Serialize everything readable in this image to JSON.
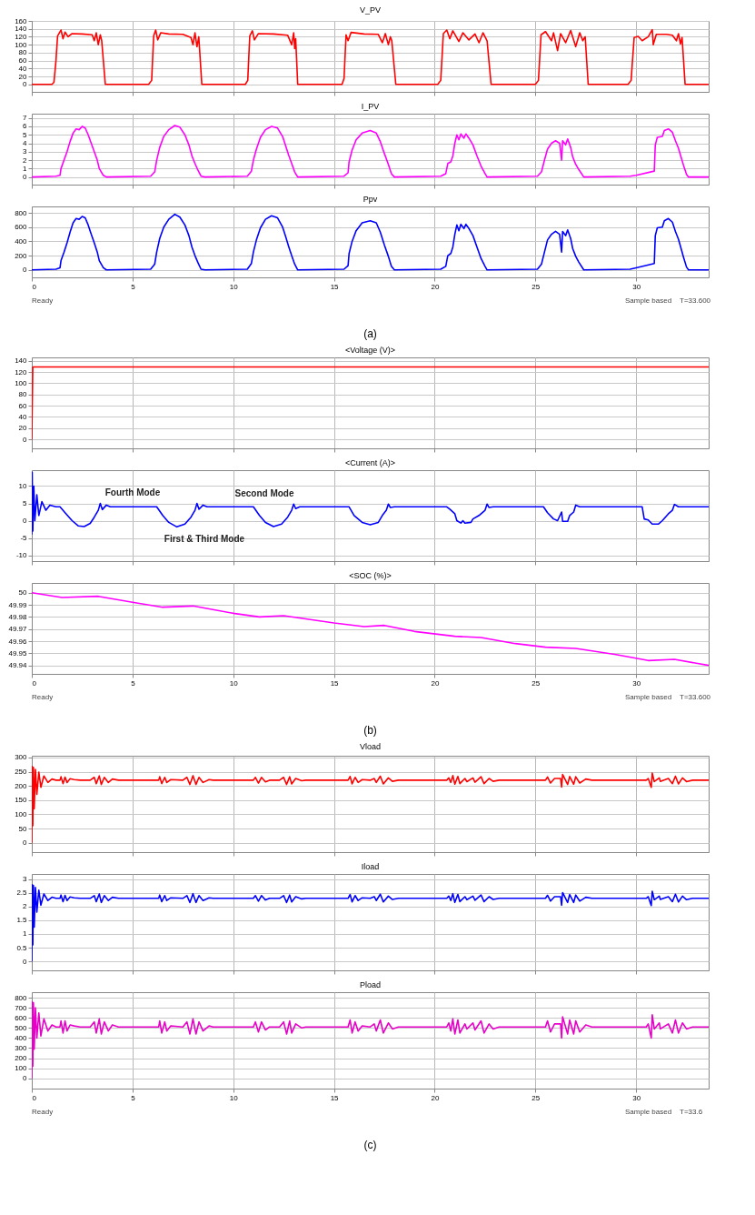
{
  "chart_data": [
    {
      "type": "line",
      "title": "V_PV",
      "grid": true,
      "tick_labels": "y",
      "xlim": [
        0,
        33.6
      ],
      "xticks": [
        0,
        5,
        10,
        15,
        20,
        25,
        30
      ],
      "ylim": [
        -19,
        160
      ],
      "yticks": [
        0,
        20,
        40,
        60,
        80,
        100,
        120,
        140,
        160
      ],
      "x": [
        0,
        1.0,
        1.1,
        1.2,
        1.28,
        1.35,
        1.45,
        1.55,
        1.65,
        1.8,
        2.0,
        2.5,
        3.0,
        3.1,
        3.2,
        3.3,
        3.4,
        3.47,
        3.65,
        5.8,
        5.95,
        6.05,
        6.15,
        6.25,
        6.4,
        6.8,
        7.5,
        7.9,
        8.0,
        8.1,
        8.2,
        8.29,
        8.44,
        10.6,
        10.72,
        10.82,
        10.95,
        11.05,
        11.25,
        12,
        12.7,
        12.9,
        13.0,
        13.05,
        13.1,
        13.2,
        15.4,
        15.5,
        15.6,
        15.7,
        15.85,
        16.5,
        17.2,
        17.4,
        17.55,
        17.7,
        17.8,
        17.87,
        18.07,
        20.15,
        20.3,
        20.43,
        20.6,
        20.75,
        20.9,
        21.2,
        21.4,
        21.7,
        22.0,
        22.2,
        22.4,
        22.6,
        22.8,
        25.0,
        25.15,
        25.28,
        25.5,
        25.8,
        25.9,
        26.1,
        26.25,
        26.5,
        26.75,
        27.0,
        27.2,
        27.35,
        27.47,
        27.62,
        29.6,
        29.75,
        29.9,
        30.1,
        30.3,
        30.6,
        30.8,
        30.85,
        31.0,
        31.5,
        31.8,
        32.0,
        32.1,
        32.2,
        32.28,
        32.43,
        33.6
      ],
      "series": [
        {
          "color": "#ff0000",
          "values": [
            0,
            0,
            5,
            60,
            122,
            128,
            137,
            115,
            132,
            120,
            128,
            127,
            125,
            110,
            130,
            100,
            125,
            110,
            0,
            0,
            10,
            122,
            137,
            112,
            130,
            127,
            126,
            118,
            100,
            130,
            95,
            120,
            0,
            0,
            10,
            122,
            135,
            112,
            128,
            127,
            124,
            100,
            130,
            90,
            115,
            0,
            0,
            15,
            125,
            110,
            131,
            127,
            126,
            105,
            128,
            100,
            120,
            110,
            0,
            0,
            10,
            128,
            137,
            115,
            135,
            108,
            130,
            112,
            127,
            105,
            130,
            110,
            0,
            0,
            10,
            125,
            133,
            110,
            130,
            85,
            128,
            105,
            136,
            95,
            130,
            110,
            120,
            0,
            0,
            10,
            118,
            121,
            110,
            120,
            138,
            100,
            126,
            126,
            124,
            110,
            128,
            102,
            118,
            0,
            0
          ]
        }
      ]
    },
    {
      "type": "line",
      "title": "I_PV",
      "grid": true,
      "tick_labels": "y",
      "xlim": [
        0,
        33.6
      ],
      "xticks": [
        0,
        5,
        10,
        15,
        20,
        25,
        30
      ],
      "ylim": [
        -0.9,
        7.5
      ],
      "yticks": [
        0,
        1,
        2,
        3,
        4,
        5,
        6,
        7
      ],
      "x": [
        0,
        1.2,
        1.4,
        1.45,
        1.6,
        1.75,
        1.9,
        2.05,
        2.2,
        2.35,
        2.5,
        2.65,
        2.8,
        2.95,
        3.1,
        3.25,
        3.35,
        3.55,
        3.7,
        5.9,
        6.1,
        6.2,
        6.35,
        6.55,
        6.8,
        7.1,
        7.35,
        7.6,
        7.8,
        7.95,
        8.1,
        8.25,
        8.4,
        8.6,
        10.7,
        10.9,
        11.0,
        11.15,
        11.35,
        11.6,
        11.9,
        12.2,
        12.45,
        12.6,
        12.75,
        12.9,
        13.05,
        13.2,
        15.5,
        15.7,
        15.75,
        15.9,
        16.1,
        16.4,
        16.8,
        17.1,
        17.3,
        17.5,
        17.7,
        17.85,
        18.0,
        20.3,
        20.55,
        20.65,
        20.8,
        20.9,
        21.0,
        21.1,
        21.2,
        21.3,
        21.45,
        21.55,
        21.7,
        21.9,
        22.1,
        22.3,
        22.5,
        22.6,
        25.1,
        25.3,
        25.45,
        25.6,
        25.8,
        26.0,
        26.2,
        26.3,
        26.35,
        26.5,
        26.6,
        26.75,
        26.85,
        27.0,
        27.15,
        27.4,
        29.7,
        30.0,
        30.9,
        30.95,
        31.05,
        31.3,
        31.4,
        31.6,
        31.8,
        31.95,
        32.1,
        32.25,
        32.35,
        32.5,
        32.6,
        33.6
      ],
      "series": [
        {
          "color": "#ff00ff",
          "values": [
            0,
            0.1,
            0.2,
            1.0,
            2.0,
            3.0,
            4.2,
            5.2,
            5.7,
            5.6,
            6.0,
            5.8,
            5.0,
            4.0,
            3.0,
            2.0,
            1.0,
            0.2,
            0,
            0.1,
            0.6,
            2.0,
            3.5,
            4.8,
            5.6,
            6.1,
            5.9,
            5.0,
            3.8,
            2.5,
            1.6,
            0.8,
            0.1,
            0,
            0.1,
            0.7,
            2.0,
            3.3,
            4.7,
            5.6,
            6.0,
            5.8,
            4.8,
            3.7,
            2.6,
            1.6,
            0.6,
            0,
            0.1,
            0.5,
            1.8,
            3.2,
            4.4,
            5.2,
            5.5,
            5.2,
            4.2,
            2.8,
            1.5,
            0.4,
            0,
            0.1,
            0.4,
            1.6,
            1.8,
            2.5,
            4.0,
            5.0,
            4.4,
            5.1,
            4.6,
            5.1,
            4.6,
            3.8,
            2.5,
            1.3,
            0.4,
            0,
            0.1,
            0.6,
            2.0,
            3.3,
            4.0,
            4.3,
            4.0,
            2.0,
            4.3,
            3.8,
            4.5,
            3.5,
            2.4,
            1.5,
            0.9,
            0,
            0.1,
            0.2,
            0.7,
            3.8,
            4.7,
            4.8,
            5.5,
            5.7,
            5.3,
            4.3,
            3.4,
            2.2,
            1.4,
            0.3,
            0,
            0
          ]
        }
      ]
    },
    {
      "type": "line",
      "title": "Ppv",
      "grid": true,
      "xlim": [
        0,
        33.6
      ],
      "xticks": [
        0,
        5,
        10,
        15,
        20,
        25,
        30
      ],
      "ylim": [
        -105,
        890
      ],
      "yticks": [
        0,
        200,
        400,
        600,
        800
      ],
      "x": [
        0,
        1.2,
        1.4,
        1.45,
        1.6,
        1.75,
        1.9,
        2.05,
        2.2,
        2.35,
        2.5,
        2.65,
        2.8,
        2.95,
        3.1,
        3.25,
        3.35,
        3.55,
        3.7,
        5.9,
        6.1,
        6.2,
        6.35,
        6.55,
        6.8,
        7.1,
        7.35,
        7.6,
        7.8,
        7.95,
        8.1,
        8.25,
        8.4,
        8.6,
        10.7,
        10.9,
        11.0,
        11.15,
        11.35,
        11.6,
        11.9,
        12.2,
        12.45,
        12.6,
        12.75,
        12.9,
        13.05,
        13.2,
        15.5,
        15.7,
        15.75,
        15.9,
        16.1,
        16.4,
        16.8,
        17.1,
        17.3,
        17.5,
        17.7,
        17.85,
        18.0,
        20.3,
        20.55,
        20.65,
        20.8,
        20.9,
        21.0,
        21.1,
        21.2,
        21.3,
        21.45,
        21.55,
        21.7,
        21.9,
        22.1,
        22.3,
        22.5,
        22.6,
        25.1,
        25.3,
        25.45,
        25.6,
        25.8,
        26.0,
        26.2,
        26.3,
        26.35,
        26.5,
        26.6,
        26.75,
        26.85,
        27.0,
        27.15,
        27.4,
        29.7,
        30.0,
        30.9,
        30.95,
        31.05,
        31.3,
        31.4,
        31.6,
        31.8,
        31.95,
        32.1,
        32.25,
        32.35,
        32.5,
        32.6,
        33.6
      ],
      "series": [
        {
          "color": "#0000ff",
          "values": [
            0,
            10,
            30,
            130,
            250,
            380,
            530,
            660,
            720,
            710,
            750,
            730,
            630,
            500,
            380,
            250,
            130,
            30,
            0,
            10,
            80,
            250,
            440,
            600,
            710,
            780,
            740,
            630,
            480,
            320,
            200,
            100,
            10,
            0,
            10,
            90,
            250,
            420,
            590,
            710,
            760,
            730,
            600,
            470,
            330,
            200,
            80,
            0,
            10,
            60,
            230,
            400,
            550,
            660,
            690,
            660,
            530,
            350,
            190,
            50,
            0,
            10,
            50,
            200,
            230,
            320,
            500,
            630,
            550,
            640,
            580,
            640,
            580,
            480,
            320,
            160,
            50,
            0,
            10,
            80,
            250,
            420,
            500,
            540,
            500,
            250,
            540,
            480,
            560,
            440,
            300,
            190,
            110,
            0,
            10,
            30,
            90,
            480,
            590,
            600,
            690,
            720,
            670,
            540,
            430,
            280,
            180,
            40,
            0,
            0
          ]
        }
      ],
      "annotations": [
        "Ready",
        "Sample based",
        "T=33.600",
        "(a)"
      ]
    },
    {
      "type": "line",
      "title": "<Voltage (V)>",
      "grid": true,
      "tick_labels": "y",
      "xlim": [
        0,
        33.6
      ],
      "xticks": [
        0,
        5,
        10,
        15,
        20,
        25,
        30
      ],
      "ylim": [
        -16,
        146
      ],
      "yticks": [
        0,
        20,
        40,
        60,
        80,
        100,
        120,
        140
      ],
      "x": [
        0,
        0.05,
        33.6
      ],
      "series": [
        {
          "color": "#ff0000",
          "values": [
            0,
            129,
            129
          ]
        }
      ]
    },
    {
      "type": "line",
      "title": "<Current (A)>",
      "grid": true,
      "tick_labels": "y",
      "xlim": [
        0,
        33.6
      ],
      "xticks": [
        0,
        5,
        10,
        15,
        20,
        25,
        30
      ],
      "ylim": [
        -11.7,
        14.6
      ],
      "yticks": [
        -10,
        -5,
        0,
        5,
        10
      ],
      "x": [
        0,
        0.02,
        0.05,
        0.1,
        0.15,
        0.25,
        0.35,
        0.5,
        0.7,
        0.9,
        1.2,
        1.4,
        1.7,
        2.0,
        2.3,
        2.6,
        2.9,
        3.1,
        3.3,
        3.4,
        3.5,
        3.7,
        3.9,
        6.2,
        6.5,
        6.8,
        7.2,
        7.6,
        7.9,
        8.1,
        8.2,
        8.3,
        8.5,
        8.7,
        11.0,
        11.3,
        11.6,
        12.0,
        12.4,
        12.7,
        12.9,
        13.0,
        13.1,
        13.3,
        15.75,
        16.0,
        16.4,
        16.8,
        17.2,
        17.4,
        17.6,
        17.7,
        17.8,
        18.0,
        20.6,
        20.75,
        21.0,
        21.1,
        21.3,
        21.4,
        21.5,
        21.8,
        21.9,
        22.2,
        22.5,
        22.6,
        22.7,
        22.9,
        25.4,
        25.6,
        25.9,
        26.1,
        26.3,
        26.35,
        26.6,
        26.7,
        26.9,
        27.0,
        27.2,
        30.3,
        30.4,
        30.6,
        30.8,
        31.1,
        31.3,
        31.6,
        31.8,
        31.9,
        32.1,
        33.6
      ],
      "series": [
        {
          "color": "#0000ff",
          "values": [
            -4,
            14,
            -3,
            10,
            0,
            7.5,
            1.5,
            5.5,
            3,
            4.5,
            4,
            4,
            2,
            0,
            -1.5,
            -1.7,
            -0.8,
            1,
            3,
            5,
            3.2,
            4.5,
            4,
            4,
            1.5,
            -0.5,
            -1.8,
            -1,
            1,
            3,
            5,
            3.3,
            4.5,
            4,
            4,
            1.5,
            -0.5,
            -1.7,
            -1,
            1,
            3,
            4.8,
            3.5,
            4,
            4,
            1.5,
            -0.5,
            -1.2,
            -0.5,
            1.5,
            3,
            4.8,
            3.8,
            4,
            4,
            3.3,
            2,
            0,
            -0.7,
            0,
            -0.7,
            -0.5,
            0.5,
            1.5,
            3,
            4.8,
            3.8,
            4,
            4,
            2.3,
            0.5,
            0,
            2.5,
            -0.2,
            -0.2,
            1.5,
            2.5,
            4.5,
            4,
            4,
            0.5,
            0.2,
            -1,
            -1,
            0,
            2,
            3,
            4.7,
            4,
            4
          ]
        }
      ],
      "annotations": [
        "Fourth Mode",
        "Second Mode",
        "First & Third Mode"
      ]
    },
    {
      "type": "line",
      "title": "<SOC (%)>",
      "grid": true,
      "xlim": [
        0,
        33.6
      ],
      "xticks": [
        0,
        5,
        10,
        15,
        20,
        25,
        30
      ],
      "ylim": [
        49.933,
        50.008
      ],
      "yticks": [
        49.94,
        49.95,
        49.96,
        49.97,
        49.98,
        49.99,
        50
      ],
      "x": [
        0,
        1.5,
        3.3,
        5,
        6.5,
        8,
        10,
        11.3,
        12.5,
        15,
        16.5,
        17.5,
        19,
        21,
        22.3,
        24,
        25.5,
        27,
        29,
        30.6,
        31.9,
        33.6
      ],
      "series": [
        {
          "color": "#ff00ff",
          "values": [
            50,
            49.996,
            49.997,
            49.992,
            49.988,
            49.989,
            49.983,
            49.98,
            49.981,
            49.975,
            49.972,
            49.973,
            49.968,
            49.964,
            49.963,
            49.958,
            49.955,
            49.954,
            49.949,
            49.944,
            49.945,
            49.94
          ]
        }
      ],
      "annotations": [
        "Ready",
        "Sample based",
        "T=33.600",
        "(b)"
      ]
    },
    {
      "type": "line",
      "title": "Vload",
      "grid": true,
      "tick_labels": "y",
      "xlim": [
        0,
        33.6
      ],
      "xticks": [
        0,
        5,
        10,
        15,
        20,
        25,
        30
      ],
      "ylim": [
        -33,
        306
      ],
      "yticks": [
        0,
        50,
        100,
        150,
        200,
        250,
        300
      ],
      "x": [
        0,
        0.02,
        0.05,
        0.08,
        0.12,
        0.18,
        0.25,
        0.35,
        0.45,
        0.6,
        0.8,
        1.0,
        1.2,
        1.4,
        1.45,
        1.55,
        1.65,
        1.75,
        1.9,
        2.1,
        2.4,
        2.9,
        3.1,
        3.2,
        3.35,
        3.45,
        3.6,
        3.8,
        4.0,
        4.3,
        6.3,
        6.35,
        6.45,
        6.6,
        6.7,
        6.9,
        7.5,
        7.7,
        7.85,
        8.0,
        8.15,
        8.3,
        8.5,
        8.8,
        9.0,
        11.0,
        11.1,
        11.25,
        11.4,
        11.6,
        11.8,
        12.3,
        12.5,
        12.65,
        12.8,
        12.9,
        13.1,
        13.4,
        13.6,
        15.7,
        15.8,
        15.9,
        16.05,
        16.2,
        16.4,
        16.8,
        17.0,
        17.1,
        17.3,
        17.45,
        17.7,
        17.9,
        18.2,
        20.6,
        20.7,
        20.8,
        20.9,
        21.0,
        21.15,
        21.25,
        21.5,
        21.6,
        21.9,
        22.0,
        22.3,
        22.45,
        22.7,
        22.9,
        23.2,
        25.5,
        25.6,
        25.75,
        25.95,
        26.25,
        26.3,
        26.35,
        26.6,
        26.7,
        26.9,
        27.0,
        27.2,
        27.5,
        27.8,
        30.5,
        30.6,
        30.75,
        30.8,
        30.9,
        31.15,
        31.2,
        31.6,
        31.8,
        31.95,
        32.1,
        32.3,
        32.5,
        32.8,
        33.6
      ],
      "series": [
        {
          "color": "#ff0000",
          "values": [
            0,
            268,
            60,
            265,
            120,
            258,
            170,
            248,
            195,
            235,
            212,
            224,
            220,
            220,
            232,
            208,
            231,
            212,
            225,
            222,
            220,
            220,
            230,
            208,
            235,
            205,
            230,
            212,
            224,
            220,
            220,
            232,
            208,
            230,
            212,
            222,
            220,
            230,
            205,
            236,
            205,
            230,
            212,
            222,
            220,
            220,
            230,
            210,
            230,
            214,
            220,
            220,
            230,
            205,
            232,
            207,
            226,
            218,
            220,
            220,
            233,
            207,
            230,
            212,
            222,
            220,
            226,
            212,
            234,
            207,
            228,
            216,
            220,
            220,
            228,
            212,
            236,
            206,
            233,
            208,
            226,
            215,
            228,
            213,
            232,
            208,
            226,
            216,
            220,
            220,
            231,
            210,
            226,
            226,
            196,
            240,
            205,
            233,
            206,
            232,
            210,
            224,
            220,
            220,
            226,
            195,
            245,
            215,
            228,
            216,
            226,
            208,
            234,
            207,
            228,
            215,
            220,
            220
          ]
        }
      ]
    },
    {
      "type": "line",
      "title": "Iload",
      "grid": true,
      "tick_labels": "y",
      "xlim": [
        0,
        33.6
      ],
      "xticks": [
        0,
        5,
        10,
        15,
        20,
        25,
        30
      ],
      "ylim": [
        -0.33,
        3.19
      ],
      "yticks": [
        0,
        0.5,
        1,
        1.5,
        2,
        2.5,
        3
      ],
      "x": [
        0,
        0.02,
        0.05,
        0.08,
        0.12,
        0.18,
        0.25,
        0.35,
        0.45,
        0.6,
        0.8,
        1.0,
        1.2,
        1.4,
        1.45,
        1.55,
        1.65,
        1.75,
        1.9,
        2.1,
        2.4,
        2.9,
        3.1,
        3.2,
        3.35,
        3.45,
        3.6,
        3.8,
        4.0,
        4.3,
        6.3,
        6.35,
        6.45,
        6.6,
        6.7,
        6.9,
        7.5,
        7.7,
        7.85,
        8.0,
        8.15,
        8.3,
        8.5,
        8.8,
        9.0,
        11.0,
        11.1,
        11.25,
        11.4,
        11.6,
        11.8,
        12.3,
        12.5,
        12.65,
        12.8,
        12.9,
        13.1,
        13.4,
        13.6,
        15.7,
        15.8,
        15.9,
        16.05,
        16.2,
        16.4,
        16.8,
        17.0,
        17.1,
        17.3,
        17.45,
        17.7,
        17.9,
        18.2,
        20.6,
        20.7,
        20.8,
        20.9,
        21.0,
        21.15,
        21.25,
        21.5,
        21.6,
        21.9,
        22.0,
        22.3,
        22.45,
        22.7,
        22.9,
        23.2,
        25.5,
        25.6,
        25.75,
        25.95,
        26.25,
        26.3,
        26.35,
        26.6,
        26.7,
        26.9,
        27.0,
        27.2,
        27.5,
        27.8,
        30.5,
        30.6,
        30.75,
        30.8,
        30.9,
        31.15,
        31.2,
        31.6,
        31.8,
        31.95,
        32.1,
        32.3,
        32.5,
        32.8,
        33.6
      ],
      "series": [
        {
          "color": "#0000ff",
          "values": [
            0,
            2.8,
            0.6,
            2.77,
            1.25,
            2.7,
            1.8,
            2.6,
            2.05,
            2.46,
            2.22,
            2.34,
            2.3,
            2.3,
            2.42,
            2.18,
            2.41,
            2.22,
            2.35,
            2.32,
            2.3,
            2.3,
            2.4,
            2.18,
            2.46,
            2.15,
            2.4,
            2.22,
            2.34,
            2.3,
            2.3,
            2.42,
            2.18,
            2.4,
            2.22,
            2.32,
            2.3,
            2.4,
            2.15,
            2.47,
            2.15,
            2.4,
            2.22,
            2.32,
            2.3,
            2.3,
            2.4,
            2.2,
            2.4,
            2.24,
            2.3,
            2.3,
            2.4,
            2.15,
            2.42,
            2.17,
            2.36,
            2.28,
            2.3,
            2.3,
            2.44,
            2.17,
            2.4,
            2.22,
            2.32,
            2.3,
            2.36,
            2.22,
            2.45,
            2.17,
            2.38,
            2.26,
            2.3,
            2.3,
            2.38,
            2.22,
            2.47,
            2.15,
            2.44,
            2.18,
            2.36,
            2.25,
            2.38,
            2.23,
            2.42,
            2.18,
            2.36,
            2.26,
            2.3,
            2.3,
            2.41,
            2.2,
            2.36,
            2.36,
            2.05,
            2.51,
            2.15,
            2.44,
            2.15,
            2.42,
            2.2,
            2.34,
            2.3,
            2.3,
            2.36,
            2.04,
            2.56,
            2.25,
            2.38,
            2.26,
            2.36,
            2.18,
            2.45,
            2.17,
            2.38,
            2.25,
            2.3,
            2.3
          ]
        }
      ]
    },
    {
      "type": "line",
      "title": "Pload",
      "grid": true,
      "xlim": [
        0,
        33.6
      ],
      "xticks": [
        0,
        5,
        10,
        15,
        20,
        25,
        30
      ],
      "ylim": [
        -102,
        855
      ],
      "yticks": [
        0,
        100,
        200,
        300,
        400,
        500,
        600,
        700,
        800
      ],
      "x": [
        0,
        0.02,
        0.05,
        0.08,
        0.12,
        0.18,
        0.25,
        0.35,
        0.45,
        0.6,
        0.8,
        1.0,
        1.2,
        1.4,
        1.45,
        1.55,
        1.65,
        1.75,
        1.9,
        2.1,
        2.4,
        2.9,
        3.1,
        3.2,
        3.35,
        3.45,
        3.6,
        3.8,
        4.0,
        4.3,
        6.3,
        6.35,
        6.45,
        6.6,
        6.7,
        6.9,
        7.5,
        7.7,
        7.85,
        8.0,
        8.15,
        8.3,
        8.5,
        8.8,
        9.0,
        11.0,
        11.1,
        11.25,
        11.4,
        11.6,
        11.8,
        12.3,
        12.5,
        12.65,
        12.8,
        12.9,
        13.1,
        13.4,
        13.6,
        15.7,
        15.8,
        15.9,
        16.05,
        16.2,
        16.4,
        16.8,
        17.0,
        17.1,
        17.3,
        17.45,
        17.7,
        17.9,
        18.2,
        20.6,
        20.7,
        20.8,
        20.9,
        21.0,
        21.15,
        21.25,
        21.5,
        21.6,
        21.9,
        22.0,
        22.3,
        22.45,
        22.7,
        22.9,
        23.2,
        25.5,
        25.6,
        25.75,
        25.95,
        26.25,
        26.3,
        26.35,
        26.6,
        26.7,
        26.9,
        27.0,
        27.2,
        27.5,
        27.8,
        30.5,
        30.6,
        30.75,
        30.8,
        30.9,
        31.15,
        31.2,
        31.6,
        31.8,
        31.95,
        32.1,
        32.3,
        32.5,
        32.8,
        33.6
      ],
      "series": [
        {
          "color": "#e600c8",
          "values": [
            0,
            760,
            120,
            750,
            290,
            700,
            400,
            650,
            420,
            590,
            470,
            530,
            510,
            510,
            570,
            450,
            570,
            470,
            530,
            520,
            510,
            510,
            560,
            450,
            590,
            440,
            560,
            470,
            530,
            510,
            510,
            570,
            450,
            560,
            470,
            520,
            510,
            560,
            440,
            590,
            440,
            560,
            470,
            520,
            510,
            510,
            560,
            460,
            560,
            480,
            510,
            510,
            560,
            440,
            570,
            450,
            540,
            500,
            510,
            510,
            580,
            450,
            560,
            470,
            520,
            510,
            540,
            470,
            580,
            450,
            550,
            490,
            510,
            510,
            550,
            470,
            590,
            440,
            580,
            450,
            540,
            490,
            550,
            480,
            570,
            450,
            540,
            490,
            510,
            510,
            570,
            460,
            540,
            540,
            400,
            610,
            440,
            580,
            440,
            570,
            460,
            530,
            510,
            510,
            540,
            400,
            630,
            490,
            550,
            490,
            540,
            450,
            580,
            450,
            550,
            490,
            510,
            510
          ]
        }
      ],
      "annotations": [
        "Ready",
        "Sample based",
        "T=33.6",
        "(c)"
      ]
    }
  ]
}
